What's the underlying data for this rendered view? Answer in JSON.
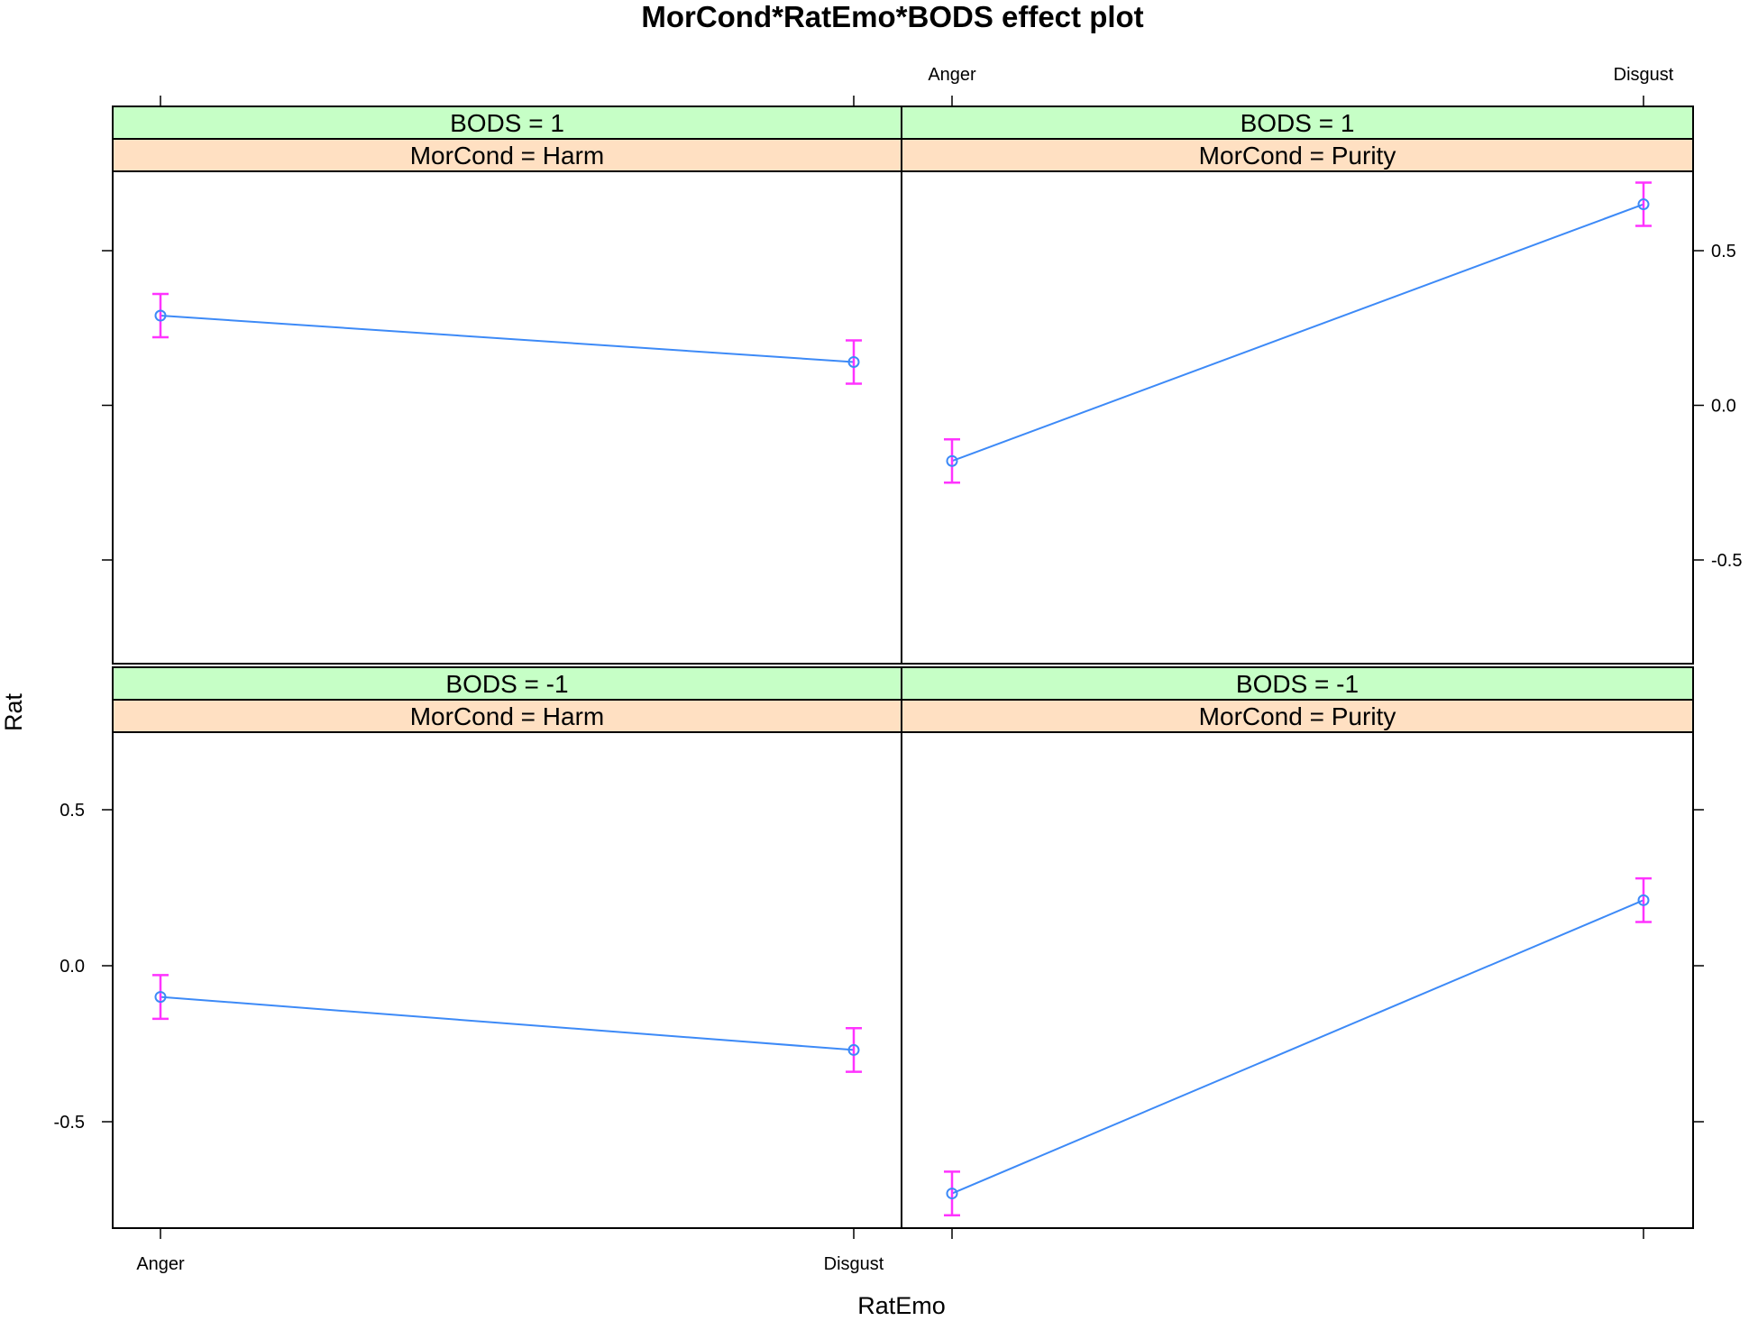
{
  "chart_data": {
    "type": "line",
    "title": "MorCond*RatEmo*BODS effect plot",
    "xlabel": "RatEmo",
    "ylabel": "Rat",
    "categories": [
      "Anger",
      "Disgust"
    ],
    "yticks": [
      "-0.5",
      "0.0",
      "0.5"
    ],
    "ylim": [
      -0.83,
      0.77
    ],
    "grid": false,
    "colors": {
      "line": "#3d8af7",
      "errorbar": "#ff33ff",
      "strip_bods": "#c6ffc6",
      "strip_morcond": "#ffe0c2",
      "axis": "#000000"
    },
    "panels": [
      {
        "row": "top",
        "col": "left",
        "bods_label": "BODS = 1",
        "morcond_label": "MorCond = Harm",
        "values": [
          0.29,
          0.14
        ],
        "lower": [
          0.22,
          0.07
        ],
        "upper": [
          0.36,
          0.21
        ]
      },
      {
        "row": "top",
        "col": "right",
        "bods_label": "BODS = 1",
        "morcond_label": "MorCond = Purity",
        "values": [
          -0.18,
          0.65
        ],
        "lower": [
          -0.25,
          0.58
        ],
        "upper": [
          -0.11,
          0.72
        ]
      },
      {
        "row": "bottom",
        "col": "left",
        "bods_label": "BODS = -1",
        "morcond_label": "MorCond = Harm",
        "values": [
          -0.1,
          -0.27
        ],
        "lower": [
          -0.17,
          -0.34
        ],
        "upper": [
          -0.03,
          -0.2
        ]
      },
      {
        "row": "bottom",
        "col": "right",
        "bods_label": "BODS = -1",
        "morcond_label": "MorCond = Purity",
        "values": [
          -0.73,
          0.21
        ],
        "lower": [
          -0.8,
          0.14
        ],
        "upper": [
          -0.66,
          0.28
        ]
      }
    ]
  }
}
